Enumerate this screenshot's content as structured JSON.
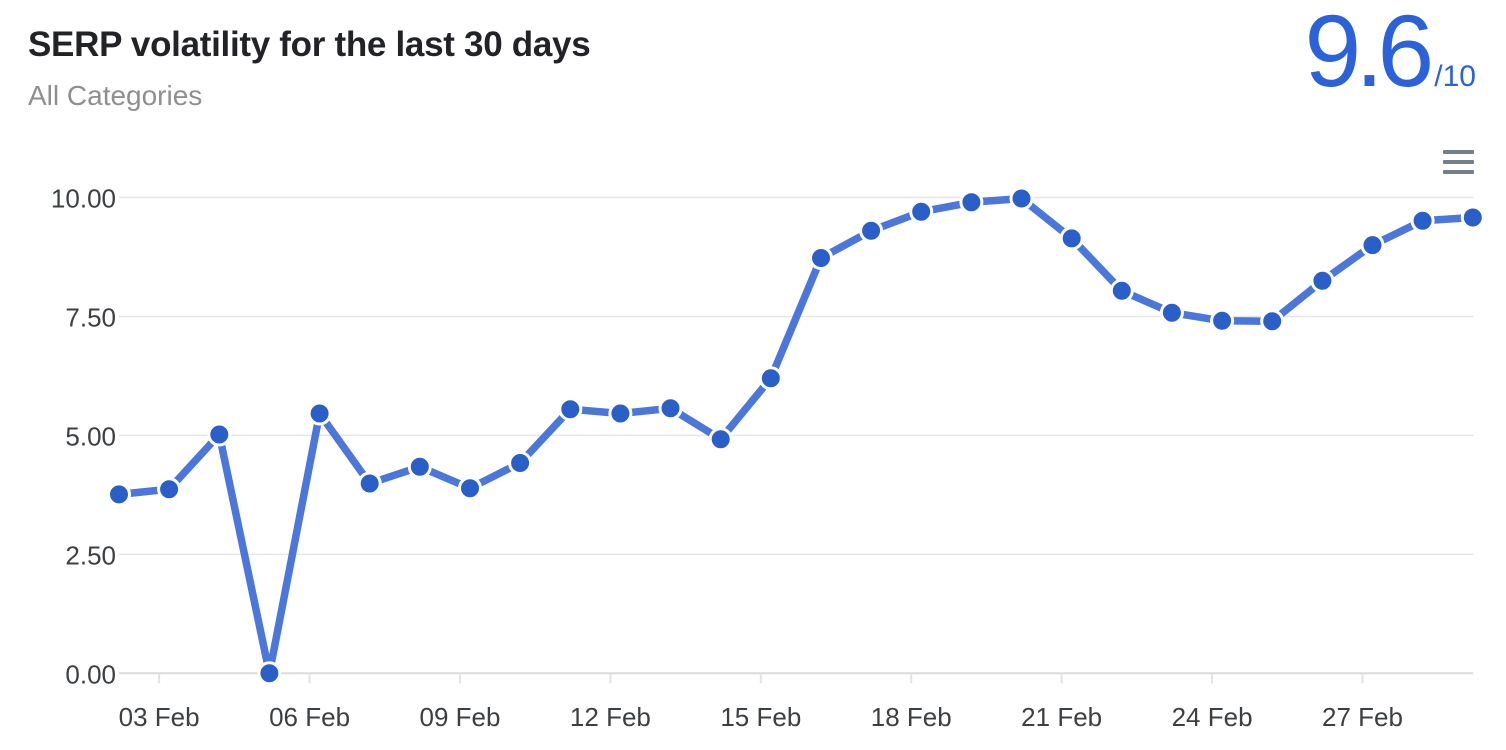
{
  "header": {
    "title": "SERP volatility for the last 30 days",
    "subtitle": "All Categories",
    "score_value": "9.6",
    "score_denominator": "/10"
  },
  "menu": {
    "icon": "hamburger-menu-icon"
  },
  "colors": {
    "accent_blue": "#2b62d9",
    "line": "#4a77d9",
    "point": "#2b5fc8",
    "point_ring": "#ffffff",
    "grid": "#e6e6e6",
    "axis_line": "#dcdcdc",
    "tick": "#e3e3e3",
    "axis_text": "#3d4043",
    "title_text": "#222326",
    "subtitle_text": "#8f8f8f",
    "menu_icon": "#72808d"
  },
  "chart_data": {
    "type": "line",
    "title": "SERP volatility for the last 30 days",
    "series_name": "SERP volatility",
    "legend": "none",
    "grid": "horizontal",
    "marker": "circle",
    "ylim": [
      0,
      10
    ],
    "x": [
      "02 Feb",
      "03 Feb",
      "04 Feb",
      "05 Feb",
      "06 Feb",
      "07 Feb",
      "08 Feb",
      "09 Feb",
      "10 Feb",
      "11 Feb",
      "12 Feb",
      "13 Feb",
      "14 Feb",
      "15 Feb",
      "16 Feb",
      "17 Feb",
      "18 Feb",
      "19 Feb",
      "20 Feb",
      "21 Feb",
      "22 Feb",
      "23 Feb",
      "24 Feb",
      "25 Feb",
      "26 Feb",
      "27 Feb",
      "28 Feb",
      "01 Mar"
    ],
    "values": [
      3.76,
      3.87,
      5.02,
      0.0,
      5.46,
      3.99,
      4.34,
      3.89,
      4.42,
      5.55,
      5.46,
      5.57,
      4.92,
      6.2,
      8.73,
      9.3,
      9.7,
      9.9,
      9.98,
      9.14,
      8.04,
      7.58,
      7.41,
      7.4,
      8.25,
      9.0,
      9.51,
      9.58
    ],
    "x_tick_labels": [
      "03 Feb",
      "06 Feb",
      "09 Feb",
      "12 Feb",
      "15 Feb",
      "18 Feb",
      "21 Feb",
      "24 Feb",
      "27 Feb"
    ],
    "x_tick_indices": [
      1,
      4,
      7,
      10,
      13,
      16,
      19,
      22,
      25
    ],
    "y_tick_labels": [
      "10.00",
      "7.50",
      "5.00",
      "2.50",
      "0.00"
    ],
    "y_tick_values": [
      10,
      7.5,
      5,
      2.5,
      0
    ]
  }
}
